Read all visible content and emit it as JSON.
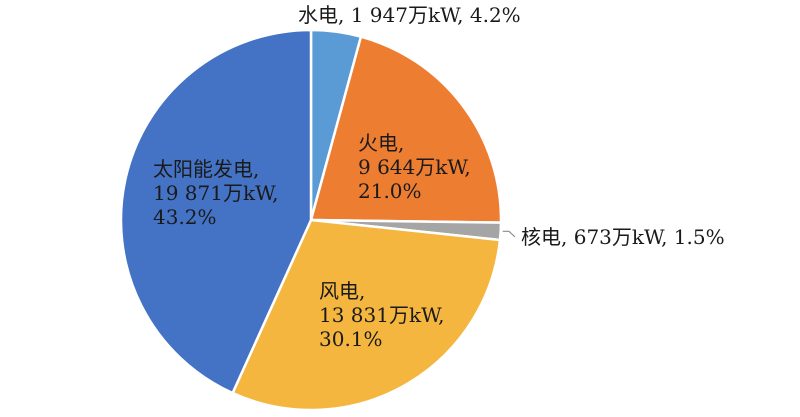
{
  "chart_data": {
    "type": "pie",
    "title": "",
    "colors": [
      "#5B9BD5",
      "#ED7D31",
      "#A5A5A5",
      "#F4B63F",
      "#4472C4"
    ],
    "slices": [
      {
        "name": "水电",
        "value": 1947,
        "percent": 4.2,
        "label_lines": [
          "水电, 1 947万kW, 4.2%"
        ],
        "label_position": "outside-top"
      },
      {
        "name": "火电",
        "value": 9644,
        "percent": 21.0,
        "label_lines": [
          "火电,",
          "9 644万kW,",
          "21.0%"
        ],
        "label_position": "inside"
      },
      {
        "name": "核电",
        "value": 673,
        "percent": 1.5,
        "label_lines": [
          "核电, 673万kW, 1.5%"
        ],
        "label_position": "outside-right"
      },
      {
        "name": "风电",
        "value": 13831,
        "percent": 30.1,
        "label_lines": [
          "风电,",
          "13 831万kW,",
          "30.1%"
        ],
        "label_position": "inside"
      },
      {
        "name": "太阳能发电",
        "value": 19871,
        "percent": 43.2,
        "label_lines": [
          "太阳能发电,",
          "19 871万kW,",
          "43.2%"
        ],
        "label_position": "inside"
      }
    ]
  }
}
